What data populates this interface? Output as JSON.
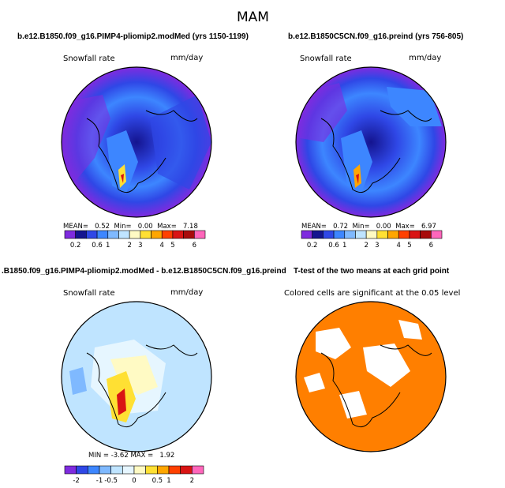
{
  "title": "MAM",
  "chart_data": [
    {
      "type": "heatmap",
      "title": "b.e12.B1850.f09_g16.PIMP4-pliomip2.modMed (yrs 1150-1199)",
      "left_label": "Snowfall rate",
      "units": "mm/day",
      "projection": "polar stereographic (north pole)",
      "stats": {
        "mean_label": "MEAN=",
        "mean": "0.52",
        "min_label": "Min=",
        "min": "0.00",
        "max_label": "Max=",
        "max": "7.18"
      },
      "colorbar": {
        "colors": [
          "#7f2bdf",
          "#14148f",
          "#2f47e6",
          "#3d86ff",
          "#7fb9ff",
          "#bfe4ff",
          "#fffac4",
          "#ffe033",
          "#ffa600",
          "#ff4000",
          "#d91414",
          "#a80b0b",
          "#ff66bb"
        ],
        "tick_labels": [
          "0.2",
          "0.6",
          "1",
          "2",
          "3",
          "4",
          "5",
          "6"
        ]
      }
    },
    {
      "type": "heatmap",
      "title": "b.e12.B1850C5CN.f09_g16.preind (yrs 756-805)",
      "left_label": "Snowfall rate",
      "units": "mm/day",
      "projection": "polar stereographic (north pole)",
      "stats": {
        "mean_label": "MEAN=",
        "mean": "0.72",
        "min_label": "Min=",
        "min": "0.00",
        "max_label": "Max=",
        "max": "6.97"
      },
      "colorbar": {
        "colors": [
          "#7f2bdf",
          "#14148f",
          "#2f47e6",
          "#3d86ff",
          "#7fb9ff",
          "#bfe4ff",
          "#fffac4",
          "#ffe033",
          "#ffa600",
          "#ff4000",
          "#d91414",
          "#a80b0b",
          "#ff66bb"
        ],
        "tick_labels": [
          "0.2",
          "0.6",
          "1",
          "2",
          "3",
          "4",
          "5",
          "6"
        ]
      }
    },
    {
      "type": "heatmap",
      "title": ".B1850.f09_g16.PIMP4-pliomip2.modMed - b.e12.B1850C5CN.f09_g16.preind",
      "left_label": "Snowfall rate",
      "units": "mm/day",
      "projection": "polar stereographic (north pole)",
      "stats": {
        "min_label": "MIN =",
        "min": "-3.62",
        "max_label": "MAX =",
        "max": "1.92"
      },
      "colorbar": {
        "colors": [
          "#7f2bdf",
          "#2f47e6",
          "#3d86ff",
          "#7fb9ff",
          "#bfe4ff",
          "#e6f6ff",
          "#fffac4",
          "#ffe033",
          "#ffa600",
          "#ff4000",
          "#d91414",
          "#ff66bb"
        ],
        "tick_labels": [
          "-2",
          "-1",
          "-0.5",
          "0",
          "0.5",
          "1",
          "2"
        ]
      }
    },
    {
      "type": "heatmap",
      "title": "T-test of the two means at each grid point",
      "left_label": "Colored cells are significant at the 0.05 level",
      "projection": "polar stereographic (north pole)",
      "significance_color": "#ff7f00"
    }
  ]
}
